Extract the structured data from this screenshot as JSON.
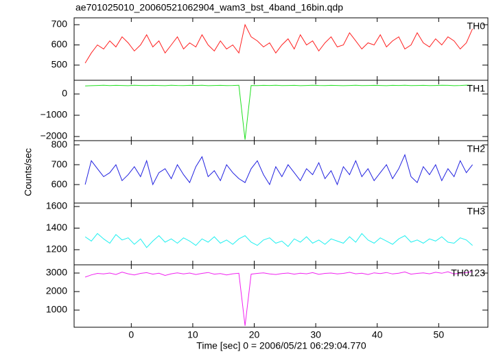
{
  "chart_data": {
    "type": "line",
    "title": "ae701025010_20060521062904_wam3_bst_4band_16bin.qdp",
    "xlabel": "Time [sec] 0 = 2006/05/21 06:29:04.770",
    "ylabel": "Counts/sec",
    "xlim": [
      -9.3,
      58
    ],
    "xticks": [
      0,
      10,
      20,
      30,
      40,
      50
    ],
    "x": [
      -7.5,
      -6.5,
      -5.5,
      -4.5,
      -3.5,
      -2.5,
      -1.5,
      -0.5,
      0.5,
      1.5,
      2.5,
      3.5,
      4.5,
      5.5,
      6.5,
      7.5,
      8.5,
      9.5,
      10.5,
      11.5,
      12.5,
      13.5,
      14.5,
      15.5,
      16.5,
      17.5,
      18.5,
      19.5,
      20.5,
      21.5,
      22.5,
      23.5,
      24.5,
      25.5,
      26.5,
      27.5,
      28.5,
      29.5,
      30.5,
      31.5,
      32.5,
      33.5,
      34.5,
      35.5,
      36.5,
      37.5,
      38.5,
      39.5,
      40.5,
      41.5,
      42.5,
      43.5,
      44.5,
      45.5,
      46.5,
      47.5,
      48.5,
      49.5,
      50.5,
      51.5,
      52.5,
      53.5,
      54.5,
      55.5
    ],
    "panels": [
      {
        "name": "TH0",
        "color": "#ff2020",
        "ylim": [
          425,
          734
        ],
        "yticks": [
          500,
          600,
          700
        ],
        "values": [
          510,
          560,
          600,
          580,
          620,
          590,
          640,
          610,
          570,
          600,
          650,
          590,
          620,
          560,
          600,
          640,
          580,
          610,
          590,
          650,
          600,
          570,
          620,
          580,
          600,
          560,
          700,
          640,
          620,
          590,
          610,
          560,
          600,
          630,
          580,
          650,
          600,
          620,
          570,
          610,
          640,
          590,
          600,
          660,
          620,
          580,
          610,
          600,
          650,
          590,
          620,
          640,
          580,
          600,
          660,
          610,
          590,
          630,
          600,
          640,
          620,
          580,
          610,
          680
        ]
      },
      {
        "name": "TH1",
        "color": "#20e020",
        "ylim": [
          -2194,
          645
        ],
        "yticks": [
          {
            "value": -2000,
            "label": "−2000"
          },
          {
            "value": -1000,
            "label": "−1000"
          },
          0
        ],
        "values": [
          380,
          390,
          400,
          410,
          395,
          405,
          400,
          390,
          410,
          400,
          395,
          405,
          400,
          390,
          410,
          400,
          395,
          405,
          400,
          410,
          390,
          400,
          405,
          395,
          400,
          410,
          -2150,
          400,
          395,
          405,
          400,
          410,
          395,
          400,
          405,
          390,
          400,
          410,
          400,
          395,
          405,
          400,
          390,
          400,
          410,
          395,
          400,
          405,
          400,
          390,
          405,
          400,
          410,
          395,
          400,
          405,
          395,
          400,
          410,
          405,
          390,
          400,
          415,
          405
        ]
      },
      {
        "name": "TH2",
        "color": "#2020e0",
        "ylim": [
          507,
          821
        ],
        "yticks": [
          600,
          700,
          800
        ],
        "values": [
          600,
          720,
          680,
          640,
          660,
          700,
          620,
          650,
          690,
          640,
          720,
          600,
          660,
          680,
          630,
          700,
          650,
          610,
          690,
          740,
          640,
          670,
          620,
          700,
          660,
          630,
          610,
          680,
          720,
          650,
          600,
          690,
          640,
          700,
          660,
          620,
          680,
          650,
          710,
          630,
          670,
          600,
          690,
          650,
          720,
          640,
          680,
          620,
          660,
          700,
          630,
          680,
          750,
          640,
          610,
          690,
          650,
          700,
          620,
          680,
          640,
          720,
          660,
          700
        ]
      },
      {
        "name": "TH3",
        "color": "#20f0f0",
        "ylim": [
          1060,
          1632
        ],
        "yticks": [
          1200,
          1400,
          1600
        ],
        "values": [
          1320,
          1280,
          1350,
          1300,
          1260,
          1340,
          1290,
          1310,
          1250,
          1300,
          1220,
          1280,
          1330,
          1270,
          1300,
          1260,
          1310,
          1280,
          1240,
          1300,
          1270,
          1320,
          1260,
          1290,
          1250,
          1300,
          1330,
          1270,
          1240,
          1290,
          1310,
          1260,
          1280,
          1230,
          1300,
          1270,
          1320,
          1260,
          1290,
          1250,
          1300,
          1280,
          1260,
          1320,
          1270,
          1350,
          1290,
          1260,
          1310,
          1280,
          1250,
          1300,
          1330,
          1270,
          1290,
          1260,
          1300,
          1280,
          1320,
          1270,
          1260,
          1310,
          1290,
          1240
        ]
      },
      {
        "name": "TH0123",
        "color": "#f020f0",
        "ylim": [
          74,
          3444
        ],
        "yticks": [
          1000,
          2000,
          3000
        ],
        "values": [
          2780,
          2900,
          2980,
          2950,
          3000,
          2920,
          3050,
          2960,
          2900,
          2980,
          3020,
          2940,
          2990,
          2870,
          2960,
          3010,
          2950,
          3000,
          2920,
          2980,
          3030,
          2940,
          2970,
          2900,
          2960,
          2990,
          150,
          2940,
          2980,
          3010,
          2950,
          2920,
          2970,
          3000,
          2940,
          2990,
          2960,
          3020,
          2930,
          2980,
          3000,
          2950,
          2980,
          3040,
          2960,
          2990,
          2920,
          3010,
          2970,
          3030,
          2950,
          2990,
          3060,
          2940,
          2980,
          3010,
          2960,
          3040,
          2990,
          3070,
          2950,
          3000,
          3020,
          3080
        ]
      }
    ]
  }
}
